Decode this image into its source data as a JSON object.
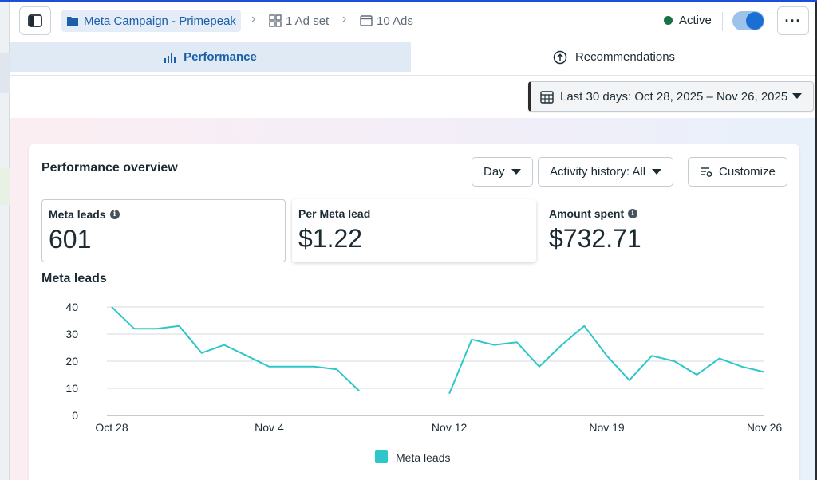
{
  "header": {
    "campaign": "Meta Campaign - Primepeak",
    "ad_set": "1 Ad set",
    "ads": "10 Ads",
    "status": "Active"
  },
  "tabs": {
    "performance": "Performance",
    "recommendations": "Recommendations"
  },
  "date_range": "Last 30 days: Oct 28, 2025 – Nov 26, 2025",
  "overview": {
    "title": "Performance overview",
    "day_label": "Day",
    "activity_label": "Activity history: All",
    "customize_label": "Customize"
  },
  "metrics": [
    {
      "label": "Meta leads",
      "value": "601"
    },
    {
      "label": "Per Meta lead",
      "value": "$1.22"
    },
    {
      "label": "Amount spent",
      "value": "$732.71"
    }
  ],
  "chart_data": {
    "type": "line",
    "title": "Meta leads",
    "x_tick_labels": [
      "Oct 28",
      "Nov 4",
      "Nov 12",
      "Nov 19",
      "Nov 26"
    ],
    "x_tick_days": [
      0,
      7,
      15,
      22,
      29
    ],
    "y_ticks": [
      0,
      10,
      20,
      30,
      40
    ],
    "ylim": [
      0,
      40
    ],
    "xlim_days": [
      0,
      29
    ],
    "color": "#2ec7c9",
    "legend": "Meta leads",
    "legend_position": "bottom-center",
    "grid": true,
    "segments": [
      [
        [
          0,
          40
        ],
        [
          1,
          32
        ],
        [
          2,
          32
        ],
        [
          3,
          33
        ],
        [
          4,
          23
        ],
        [
          5,
          26
        ],
        [
          6,
          22
        ],
        [
          7,
          18
        ],
        [
          8,
          18
        ],
        [
          9,
          18
        ],
        [
          10,
          17
        ],
        [
          11,
          9
        ]
      ],
      [
        [
          15,
          8
        ],
        [
          16,
          28
        ],
        [
          17,
          26
        ],
        [
          18,
          27
        ],
        [
          19,
          18
        ],
        [
          20,
          26
        ],
        [
          21,
          33
        ],
        [
          22,
          22
        ],
        [
          23,
          13
        ],
        [
          24,
          22
        ],
        [
          25,
          20
        ],
        [
          26,
          15
        ],
        [
          27,
          21
        ],
        [
          28,
          18
        ],
        [
          29,
          16
        ]
      ]
    ]
  }
}
